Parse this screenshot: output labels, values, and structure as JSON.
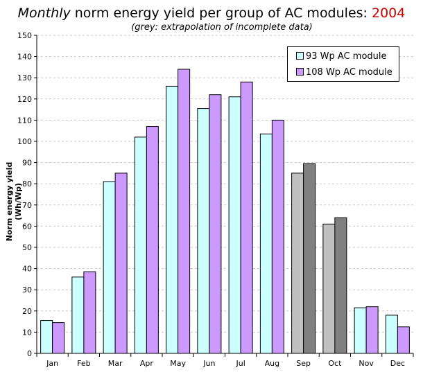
{
  "chart_data": {
    "type": "bar",
    "title_parts": [
      "Monthly",
      " norm energy yield per group of AC modules: ",
      "2004"
    ],
    "subtitle": "(grey: extrapolation of incomplete data)",
    "ylabel": "Norm energy yield (Wh/Wp)",
    "xlabel": "",
    "ylim": [
      0,
      150
    ],
    "ytick_step": 10,
    "grid": true,
    "legend_position": "top-right",
    "categories": [
      "Jan",
      "Feb",
      "Mar",
      "Apr",
      "May",
      "Jun",
      "Jul",
      "Aug",
      "Sep",
      "Oct",
      "Nov",
      "Dec"
    ],
    "series": [
      {
        "name": "93 Wp AC module",
        "color": "#ccffff",
        "extrapolated_color": "#c0c0c0",
        "values": [
          15.5,
          36,
          81,
          102,
          126,
          115.5,
          121,
          103.5,
          85,
          61,
          21.5,
          18
        ]
      },
      {
        "name": "108 Wp AC module",
        "color": "#cc99ff",
        "extrapolated_color": "#808080",
        "values": [
          14.5,
          38.5,
          85,
          107,
          134,
          122,
          128,
          110,
          89.5,
          64,
          22,
          12.5
        ]
      }
    ],
    "extrapolated_categories": [
      "Sep",
      "Oct"
    ]
  }
}
